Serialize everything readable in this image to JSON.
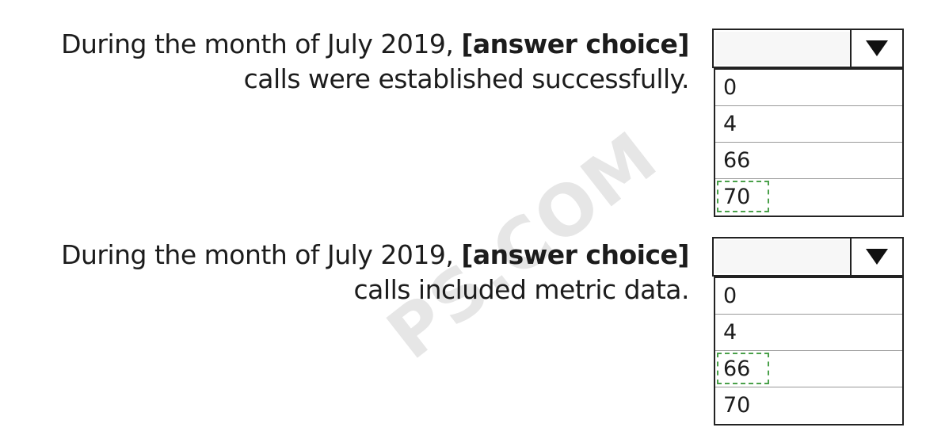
{
  "watermark": "PS.COM",
  "questions": [
    {
      "prefix": "During the month of July 2019, ",
      "bold": "[answer choice]",
      "suffix": "calls were established successfully.",
      "options": [
        "0",
        "4",
        "66",
        "70"
      ],
      "selected": "70"
    },
    {
      "prefix": "During the month of July 2019, ",
      "bold": "[answer choice]",
      "suffix": "calls included metric data.",
      "options": [
        "0",
        "4",
        "66",
        "70"
      ],
      "selected": "66"
    }
  ],
  "icons": {
    "dropdown_arrow": "triangle-down-icon"
  }
}
